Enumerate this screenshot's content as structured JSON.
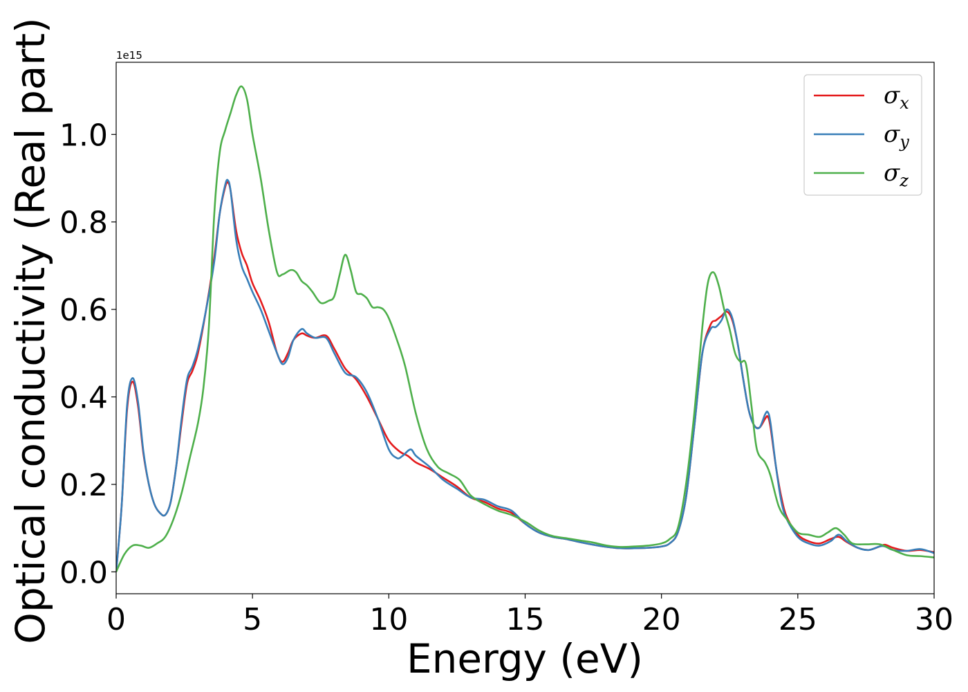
{
  "chart_data": {
    "type": "line",
    "title": "",
    "xlabel": "Energy (eV)",
    "ylabel": "Optical conductivity (Real part)",
    "y_offset_label": "1e15",
    "xlim": [
      0,
      30
    ],
    "ylim": [
      -0.05,
      1.165
    ],
    "x_ticks": [
      0,
      5,
      10,
      15,
      20,
      25,
      30
    ],
    "x_tick_labels": [
      "0",
      "5",
      "10",
      "15",
      "20",
      "25",
      "30"
    ],
    "y_ticks": [
      0.0,
      0.2,
      0.4,
      0.6,
      0.8,
      1.0
    ],
    "y_tick_labels": [
      "0.0",
      "0.2",
      "0.4",
      "0.6",
      "0.8",
      "1.0"
    ],
    "grid": false,
    "legend_position": "top-right",
    "series": [
      {
        "name": "σx",
        "legend_base": "σ",
        "legend_sub": "x",
        "color": "#e41a1c",
        "x": [
          0,
          0.2,
          0.4,
          0.6,
          0.8,
          1.0,
          1.2,
          1.4,
          1.6,
          1.8,
          2.0,
          2.2,
          2.4,
          2.6,
          2.8,
          3.0,
          3.3,
          3.6,
          3.8,
          4.0,
          4.1,
          4.2,
          4.4,
          4.6,
          4.8,
          5.0,
          5.3,
          5.6,
          5.9,
          6.1,
          6.3,
          6.5,
          6.8,
          7.0,
          7.3,
          7.7,
          8.0,
          8.4,
          8.8,
          9.2,
          9.6,
          10.0,
          10.4,
          10.7,
          11.0,
          11.5,
          12.0,
          12.5,
          13.0,
          13.5,
          14.0,
          14.5,
          15.0,
          15.5,
          16.0,
          16.5,
          17.0,
          17.5,
          18.0,
          18.5,
          19.0,
          19.5,
          20.0,
          20.3,
          20.6,
          20.9,
          21.2,
          21.5,
          21.8,
          22.0,
          22.2,
          22.4,
          22.6,
          22.8,
          23.0,
          23.2,
          23.4,
          23.6,
          23.8,
          23.9,
          24.0,
          24.2,
          24.4,
          24.6,
          25.0,
          25.4,
          25.8,
          26.2,
          26.5,
          26.8,
          27.2,
          27.6,
          28.0,
          28.2,
          28.5,
          29.0,
          29.5,
          30.0
        ],
        "y": [
          0.0,
          0.15,
          0.37,
          0.435,
          0.38,
          0.27,
          0.2,
          0.155,
          0.135,
          0.13,
          0.16,
          0.24,
          0.34,
          0.43,
          0.46,
          0.5,
          0.6,
          0.72,
          0.82,
          0.88,
          0.89,
          0.87,
          0.78,
          0.73,
          0.7,
          0.66,
          0.62,
          0.57,
          0.5,
          0.48,
          0.5,
          0.53,
          0.545,
          0.54,
          0.535,
          0.54,
          0.51,
          0.465,
          0.44,
          0.4,
          0.35,
          0.3,
          0.275,
          0.265,
          0.25,
          0.235,
          0.215,
          0.195,
          0.17,
          0.16,
          0.145,
          0.135,
          0.11,
          0.09,
          0.08,
          0.075,
          0.068,
          0.062,
          0.057,
          0.054,
          0.054,
          0.055,
          0.058,
          0.065,
          0.09,
          0.17,
          0.33,
          0.5,
          0.565,
          0.575,
          0.585,
          0.595,
          0.575,
          0.52,
          0.44,
          0.37,
          0.335,
          0.33,
          0.35,
          0.355,
          0.33,
          0.24,
          0.17,
          0.125,
          0.085,
          0.07,
          0.065,
          0.075,
          0.08,
          0.068,
          0.055,
          0.05,
          0.058,
          0.062,
          0.055,
          0.048,
          0.05,
          0.045
        ]
      },
      {
        "name": "σy",
        "legend_base": "σ",
        "legend_sub": "y",
        "color": "#377eb8",
        "x": [
          0,
          0.2,
          0.4,
          0.6,
          0.8,
          1.0,
          1.2,
          1.4,
          1.6,
          1.8,
          2.0,
          2.2,
          2.4,
          2.6,
          2.8,
          3.0,
          3.3,
          3.6,
          3.8,
          4.0,
          4.1,
          4.2,
          4.4,
          4.6,
          4.8,
          5.0,
          5.3,
          5.6,
          5.9,
          6.1,
          6.3,
          6.5,
          6.8,
          7.0,
          7.3,
          7.7,
          8.0,
          8.4,
          8.8,
          9.2,
          9.6,
          10.0,
          10.3,
          10.5,
          10.8,
          11.0,
          11.5,
          12.0,
          12.5,
          13.0,
          13.5,
          14.0,
          14.5,
          15.0,
          15.5,
          16.0,
          16.5,
          17.0,
          17.5,
          18.0,
          18.5,
          19.0,
          19.5,
          20.0,
          20.3,
          20.6,
          20.9,
          21.2,
          21.5,
          21.8,
          22.0,
          22.2,
          22.4,
          22.6,
          22.8,
          23.0,
          23.2,
          23.4,
          23.6,
          23.8,
          23.9,
          24.0,
          24.2,
          24.4,
          24.6,
          25.0,
          25.4,
          25.8,
          26.2,
          26.5,
          26.8,
          27.2,
          27.6,
          28.0,
          28.2,
          28.5,
          29.0,
          29.5,
          30.0
        ],
        "y": [
          0.0,
          0.15,
          0.38,
          0.443,
          0.39,
          0.275,
          0.2,
          0.155,
          0.135,
          0.13,
          0.16,
          0.24,
          0.35,
          0.44,
          0.47,
          0.51,
          0.6,
          0.71,
          0.82,
          0.885,
          0.895,
          0.87,
          0.76,
          0.7,
          0.67,
          0.64,
          0.6,
          0.55,
          0.5,
          0.475,
          0.49,
          0.53,
          0.555,
          0.545,
          0.535,
          0.535,
          0.5,
          0.455,
          0.445,
          0.41,
          0.35,
          0.28,
          0.26,
          0.265,
          0.28,
          0.265,
          0.24,
          0.21,
          0.19,
          0.17,
          0.165,
          0.15,
          0.14,
          0.11,
          0.09,
          0.08,
          0.075,
          0.068,
          0.062,
          0.057,
          0.054,
          0.054,
          0.055,
          0.058,
          0.065,
          0.09,
          0.17,
          0.33,
          0.5,
          0.555,
          0.56,
          0.575,
          0.6,
          0.58,
          0.52,
          0.44,
          0.37,
          0.335,
          0.33,
          0.36,
          0.365,
          0.34,
          0.24,
          0.16,
          0.12,
          0.08,
          0.065,
          0.06,
          0.07,
          0.085,
          0.07,
          0.055,
          0.05,
          0.058,
          0.058,
          0.05,
          0.048,
          0.052,
          0.043
        ]
      },
      {
        "name": "σz",
        "legend_base": "σ",
        "legend_sub": "z",
        "color": "#4daf4a",
        "x": [
          0,
          0.3,
          0.6,
          0.9,
          1.2,
          1.5,
          1.8,
          2.1,
          2.4,
          2.7,
          3.0,
          3.2,
          3.4,
          3.6,
          3.8,
          4.0,
          4.2,
          4.4,
          4.6,
          4.8,
          5.0,
          5.3,
          5.6,
          5.9,
          6.1,
          6.4,
          6.6,
          6.8,
          7.0,
          7.2,
          7.5,
          7.8,
          8.0,
          8.2,
          8.4,
          8.6,
          8.8,
          9.0,
          9.2,
          9.4,
          9.6,
          9.8,
          10.0,
          10.3,
          10.6,
          11.0,
          11.4,
          11.8,
          12.2,
          12.6,
          13.0,
          13.5,
          14.0,
          14.5,
          15.0,
          15.5,
          16.0,
          16.5,
          17.0,
          17.5,
          18.0,
          18.5,
          19.0,
          19.5,
          20.0,
          20.3,
          20.6,
          20.9,
          21.2,
          21.5,
          21.7,
          21.9,
          22.1,
          22.3,
          22.5,
          22.7,
          22.9,
          23.1,
          23.3,
          23.5,
          23.8,
          24.0,
          24.3,
          24.6,
          25.0,
          25.4,
          25.8,
          26.1,
          26.4,
          26.7,
          27.0,
          27.5,
          28.0,
          28.5,
          29.0,
          29.5,
          30.0
        ],
        "y": [
          0.0,
          0.04,
          0.06,
          0.06,
          0.055,
          0.065,
          0.08,
          0.12,
          0.18,
          0.26,
          0.34,
          0.42,
          0.56,
          0.82,
          0.96,
          1.01,
          1.05,
          1.09,
          1.11,
          1.08,
          1.0,
          0.9,
          0.78,
          0.685,
          0.68,
          0.69,
          0.685,
          0.665,
          0.655,
          0.64,
          0.615,
          0.62,
          0.63,
          0.68,
          0.725,
          0.69,
          0.64,
          0.635,
          0.625,
          0.605,
          0.605,
          0.6,
          0.58,
          0.53,
          0.47,
          0.36,
          0.28,
          0.24,
          0.225,
          0.21,
          0.175,
          0.155,
          0.14,
          0.13,
          0.115,
          0.095,
          0.082,
          0.077,
          0.072,
          0.067,
          0.06,
          0.057,
          0.058,
          0.06,
          0.065,
          0.075,
          0.1,
          0.2,
          0.36,
          0.56,
          0.66,
          0.685,
          0.655,
          0.6,
          0.555,
          0.5,
          0.48,
          0.475,
          0.38,
          0.28,
          0.25,
          0.22,
          0.15,
          0.12,
          0.09,
          0.085,
          0.08,
          0.09,
          0.1,
          0.085,
          0.065,
          0.063,
          0.063,
          0.05,
          0.038,
          0.036,
          0.033
        ]
      }
    ]
  }
}
